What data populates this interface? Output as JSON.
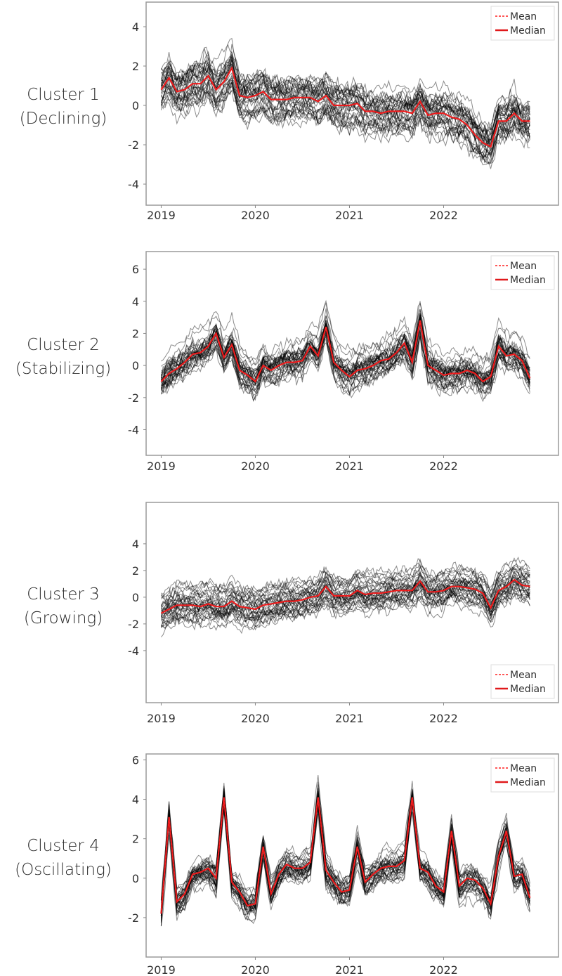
{
  "chart_data": [
    {
      "type": "line",
      "label": [
        "Cluster 1",
        "(Declining)"
      ],
      "xlim": [
        2018.84,
        2023.22
      ],
      "ylim": [
        -5.07,
        5.25
      ],
      "yticks": [
        -4,
        -2,
        0,
        2,
        4
      ],
      "xticks": [
        2019,
        2020,
        2021,
        2022
      ],
      "legend": {
        "placement": "top-right",
        "entries": [
          "Mean",
          "Median"
        ]
      },
      "series_colors": {
        "members": "#000000",
        "mean": "#ff2020",
        "median": "#e0191b"
      },
      "x_start": "2019-01",
      "x_step": "month",
      "median": [
        0.8,
        1.4,
        0.7,
        0.8,
        1.1,
        1.1,
        1.5,
        0.8,
        1.2,
        1.9,
        0.5,
        0.4,
        0.5,
        0.7,
        0.3,
        0.3,
        0.3,
        0.4,
        0.4,
        0.4,
        0.2,
        0.5,
        0.0,
        0.0,
        0.0,
        0.1,
        -0.3,
        -0.3,
        -0.4,
        -0.3,
        -0.3,
        -0.3,
        -0.4,
        0.2,
        -0.5,
        -0.4,
        -0.4,
        -0.6,
        -0.7,
        -1.0,
        -1.5,
        -1.9,
        -2.1,
        -0.8,
        -0.8,
        -0.4,
        -0.8,
        -0.8
      ],
      "spread": 0.8
    },
    {
      "type": "line",
      "label": [
        "Cluster 2",
        "(Stabilizing)"
      ],
      "xlim": [
        2018.84,
        2023.22
      ],
      "ylim": [
        -5.6,
        7.1
      ],
      "yticks": [
        -4,
        -2,
        0,
        2,
        4,
        6
      ],
      "xticks": [
        2019,
        2020,
        2021,
        2022
      ],
      "legend": {
        "placement": "top-right",
        "entries": [
          "Mean",
          "Median"
        ]
      },
      "series_colors": {
        "members": "#000000",
        "mean": "#ff2020",
        "median": "#e0191b"
      },
      "x_start": "2019-01",
      "x_step": "month",
      "median": [
        -1.0,
        -0.5,
        -0.2,
        0.2,
        0.7,
        0.8,
        1.2,
        2.0,
        0.5,
        1.3,
        -0.3,
        -0.6,
        -1.0,
        0.0,
        -0.3,
        0.0,
        0.2,
        0.2,
        0.3,
        1.2,
        0.6,
        2.4,
        0.2,
        -0.3,
        -0.7,
        -0.3,
        -0.2,
        0.0,
        0.3,
        0.4,
        0.8,
        1.4,
        0.2,
        2.8,
        0.0,
        -0.3,
        -0.6,
        -0.5,
        -0.5,
        -0.3,
        -0.5,
        -1.0,
        -0.7,
        1.2,
        0.6,
        0.7,
        0.3,
        -0.8
      ],
      "spread": 0.9
    },
    {
      "type": "line",
      "label": [
        "Cluster 3",
        "(Growing)"
      ],
      "xlim": [
        2018.84,
        2023.22
      ],
      "ylim": [
        -7.9,
        7.1
      ],
      "yticks": [
        -4,
        -2,
        0,
        2,
        4
      ],
      "xticks": [
        2019,
        2020,
        2021,
        2022
      ],
      "legend": {
        "placement": "bottom-right",
        "entries": [
          "Mean",
          "Median"
        ]
      },
      "series_colors": {
        "members": "#000000",
        "mean": "#ff2020",
        "median": "#e0191b"
      },
      "x_start": "2019-01",
      "x_step": "month",
      "median": [
        -1.2,
        -0.9,
        -0.6,
        -0.6,
        -0.6,
        -0.7,
        -0.5,
        -0.7,
        -0.7,
        -0.3,
        -0.7,
        -0.8,
        -0.9,
        -0.6,
        -0.5,
        -0.4,
        -0.3,
        -0.3,
        -0.2,
        0.0,
        0.1,
        0.8,
        0.1,
        0.1,
        0.1,
        0.5,
        0.2,
        0.3,
        0.3,
        0.4,
        0.5,
        0.5,
        0.5,
        1.2,
        0.4,
        0.4,
        0.5,
        0.8,
        0.8,
        0.7,
        0.6,
        0.3,
        -0.8,
        0.5,
        0.8,
        1.3,
        0.9,
        0.8
      ],
      "spread": 0.9
    },
    {
      "type": "line",
      "label": [
        "Cluster 4",
        "(Oscillating)"
      ],
      "xlim": [
        2018.84,
        2023.22
      ],
      "ylim": [
        -4.0,
        6.3
      ],
      "yticks": [
        -2,
        0,
        2,
        4,
        6
      ],
      "xticks": [
        2019,
        2020,
        2021,
        2022
      ],
      "legend": {
        "placement": "top-right",
        "entries": [
          "Mean",
          "Median"
        ]
      },
      "series_colors": {
        "members": "#000000",
        "mean": "#ff2020",
        "median": "#e0191b"
      },
      "x_start": "2019-01",
      "x_step": "month",
      "median": [
        -1.8,
        3.1,
        -1.2,
        -0.8,
        0.2,
        0.3,
        0.5,
        0.0,
        4.1,
        -0.2,
        -0.7,
        -1.4,
        -1.3,
        1.6,
        -0.8,
        0.2,
        0.7,
        0.5,
        0.5,
        0.8,
        4.1,
        0.4,
        -0.2,
        -0.7,
        -0.6,
        1.6,
        -0.2,
        0.2,
        0.5,
        0.6,
        0.6,
        0.9,
        4.1,
        0.5,
        0.3,
        -0.4,
        -0.7,
        2.4,
        -0.4,
        0.0,
        -0.1,
        -0.5,
        -1.3,
        1.1,
        2.4,
        0.1,
        0.2,
        -1.0
      ],
      "spread": 0.5
    }
  ]
}
